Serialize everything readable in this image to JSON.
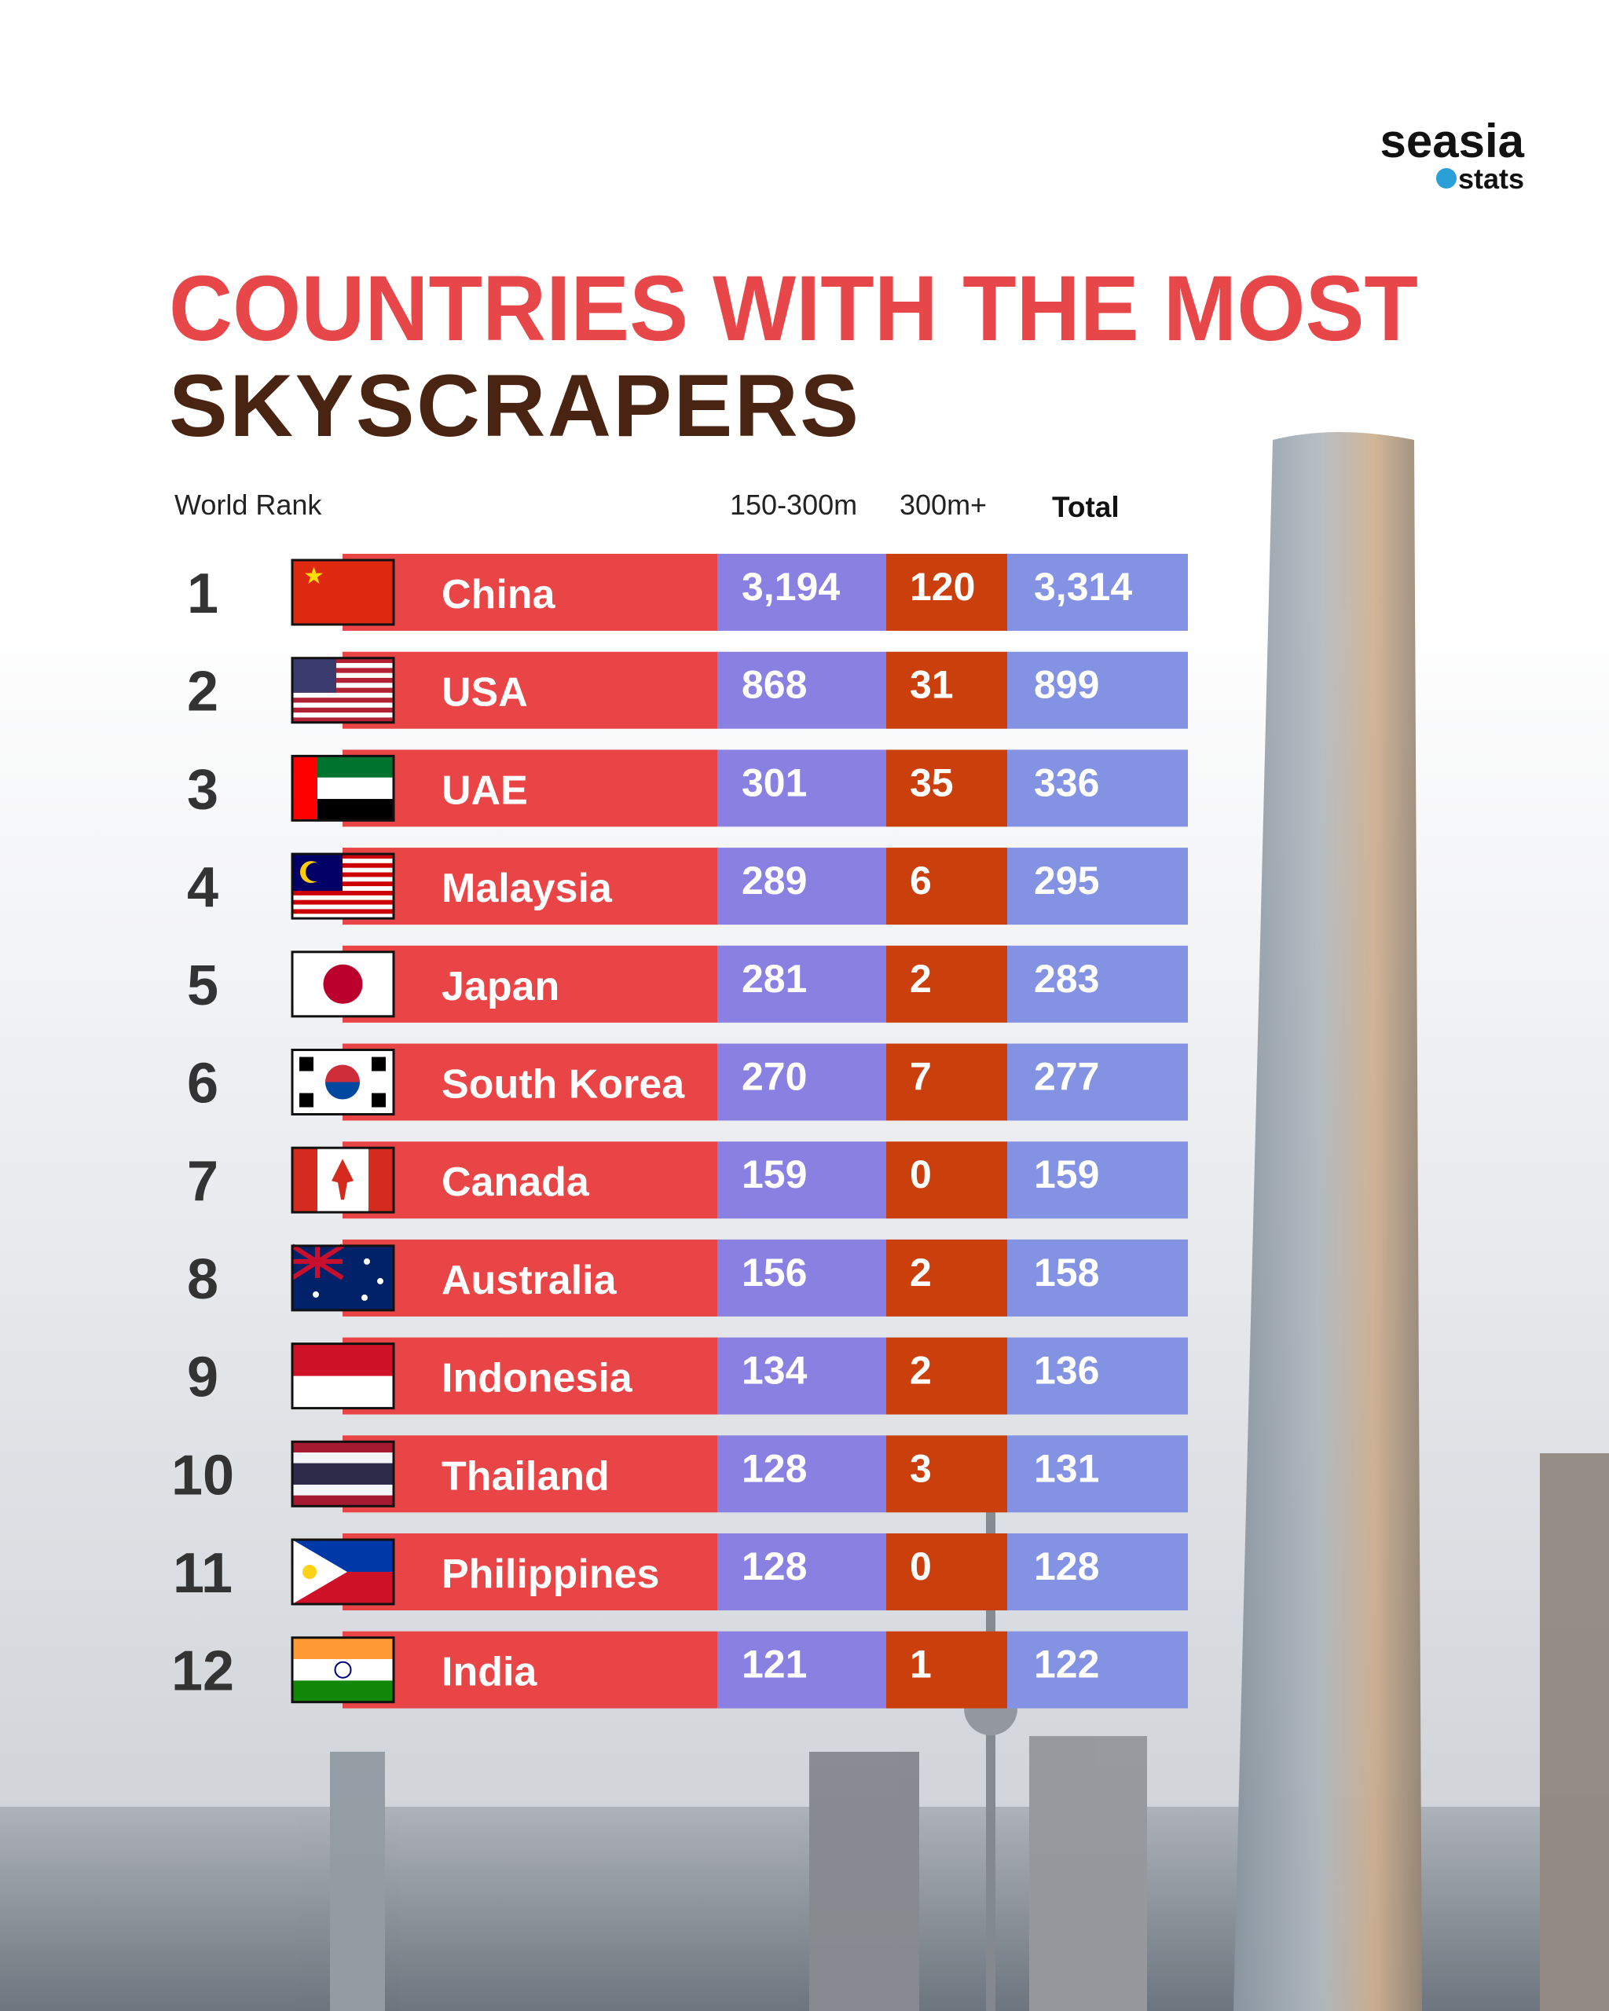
{
  "logo": {
    "name": "seasia",
    "sub": "stats"
  },
  "title": {
    "line1": "COUNTRIES WITH THE MOST",
    "line2": "SKYSCRAPERS"
  },
  "table": {
    "headers": [
      "World Rank",
      "150-300m",
      "300m+",
      "Total"
    ],
    "rows": [
      [
        "1",
        "China",
        "3,194",
        "120",
        "3,314"
      ],
      [
        "2",
        "USA",
        "868",
        "31",
        "899"
      ],
      [
        "3",
        "UAE",
        "301",
        "35",
        "336"
      ],
      [
        "4",
        "Malaysia",
        "289",
        "6",
        "295"
      ],
      [
        "5",
        "Japan",
        "281",
        "2",
        "283"
      ],
      [
        "6",
        "South Korea",
        "270",
        "7",
        "277"
      ],
      [
        "7",
        "Canada",
        "159",
        "0",
        "159"
      ],
      [
        "8",
        "Australia",
        "156",
        "2",
        "158"
      ],
      [
        "9",
        "Indonesia",
        "134",
        "2",
        "136"
      ],
      [
        "10",
        "Thailand",
        "128",
        "3",
        "131"
      ],
      [
        "11",
        "Philippines",
        "128",
        "0",
        "128"
      ],
      [
        "12",
        "India",
        "121",
        "1",
        "122"
      ]
    ]
  }
}
